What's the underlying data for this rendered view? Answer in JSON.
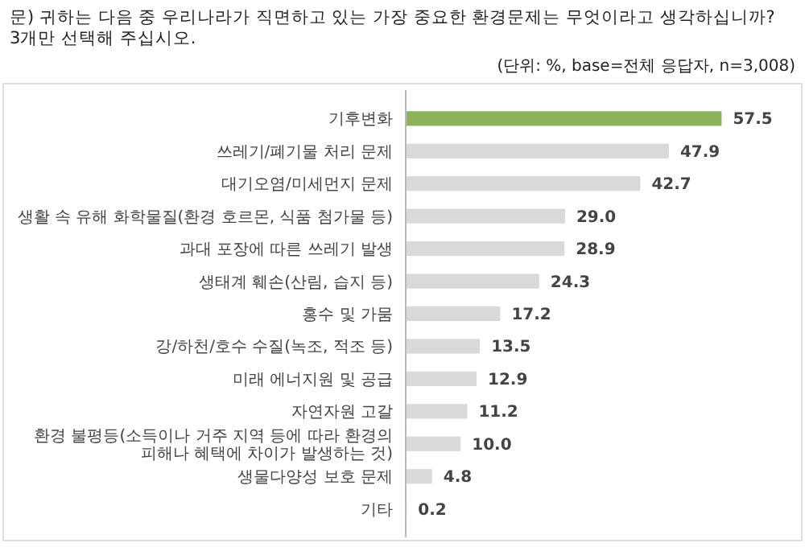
{
  "chart_data": {
    "type": "bar",
    "orientation": "horizontal",
    "title": "문) 귀하는 다음 중 우리나라가 직면하고 있는 가장 중요한 환경문제는 무엇이라고 생각하십니까? 3개만 선택해 주십시오.",
    "subtitle": "(단위: %, base=전체 응답자, n=3,008)",
    "categories": [
      "기후변화",
      "쓰레기/폐기물 처리 문제",
      "대기오염/미세먼지 문제",
      "생활 속 유해 화학물질(환경 호르몬, 식품 첨가물 등)",
      "과대 포장에 따른 쓰레기 발생",
      "생태계 훼손(산림, 습지 등)",
      "홍수 및 가뭄",
      "강/하천/호수 수질(녹조, 적조 등)",
      "미래 에너지원 및 공급",
      "자연자원 고갈",
      "환경 불평등(소득이나 거주 지역 등에 따라 환경의 피해나 혜택에 차이가 발생하는 것)",
      "생물다양성 보호 문제",
      "기타"
    ],
    "values": [
      57.5,
      47.9,
      42.7,
      29.0,
      28.9,
      24.3,
      17.2,
      13.5,
      12.9,
      11.2,
      10.0,
      4.8,
      0.2
    ],
    "colors": [
      "#8cb25a",
      "#d9d9d9",
      "#d9d9d9",
      "#d9d9d9",
      "#d9d9d9",
      "#d9d9d9",
      "#d9d9d9",
      "#d9d9d9",
      "#d9d9d9",
      "#d9d9d9",
      "#d9d9d9",
      "#d9d9d9",
      "#d9d9d9"
    ],
    "value_labels": [
      "57.5",
      "47.9",
      "42.7",
      "29.0",
      "28.9",
      "24.3",
      "17.2",
      "13.5",
      "12.9",
      "11.2",
      "10.0",
      "4.8",
      "0.2"
    ]
  }
}
